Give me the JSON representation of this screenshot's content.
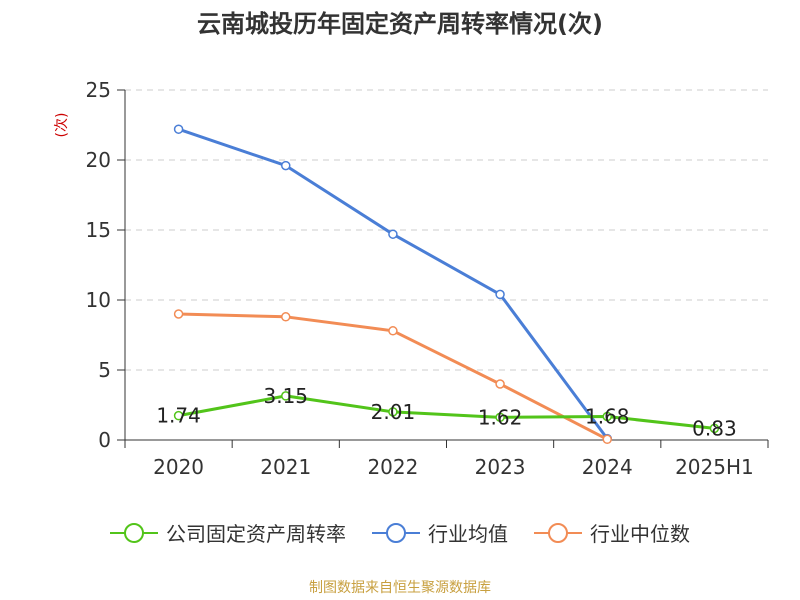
{
  "chart_data": {
    "type": "line",
    "title": "云南城投历年固定资产周转率情况(次)",
    "ylabel": "(次)",
    "categories": [
      "2020",
      "2021",
      "2022",
      "2023",
      "2024",
      "2025H1"
    ],
    "ylim": [
      0,
      25
    ],
    "yticks": [
      0,
      5,
      10,
      15,
      20,
      25
    ],
    "grid": true,
    "legend_position": "bottom",
    "series": [
      {
        "name": "公司固定资产周转率",
        "color": "#52c41a",
        "values": [
          1.74,
          3.15,
          2.01,
          1.62,
          1.68,
          0.83
        ],
        "show_labels": true
      },
      {
        "name": "行业均值",
        "color": "#4a7ed6",
        "values": [
          22.2,
          19.6,
          14.7,
          10.4,
          0.1,
          null
        ],
        "show_labels": false
      },
      {
        "name": "行业中位数",
        "color": "#f28c55",
        "values": [
          9.0,
          8.8,
          7.8,
          4.0,
          0.05,
          null
        ],
        "show_labels": false
      }
    ]
  },
  "source": {
    "text": "制图数据来自恒生聚源数据库",
    "color": "#c8a040"
  },
  "colors": {
    "axis": "#333333",
    "grid": "#cccccc",
    "ylabel": "#cc0000"
  }
}
